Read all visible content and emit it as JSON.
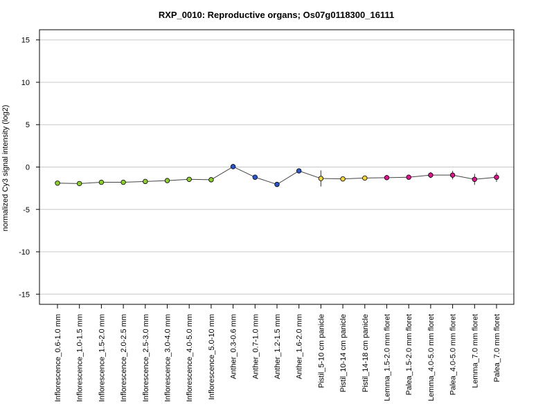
{
  "chart_data": {
    "type": "line",
    "title": "RXP_0010: Reproductive organs; Os07g0118300_16111",
    "xlabel": "",
    "ylabel": "normalized Cy3 signal intensity (log2)",
    "ylim": [
      -16.2,
      16.2
    ],
    "yticks": [
      15,
      10,
      5,
      0,
      -5,
      -10,
      -15
    ],
    "grid": true,
    "line_color": "#444444",
    "categories": [
      "Inflorescence_0.6-1.0 mm",
      "Inflorescence_1.0-1.5 mm",
      "Inflorescence_1.5-2.0 mm",
      "Inflorescence_2.0-2.5 mm",
      "Inflorescence_2.5-3.0 mm",
      "Inflorescence_3.0-4.0 mm",
      "Inflorescence_4.0-5.0 mm",
      "Inflorescence_5.0-10 mm",
      "Anther_0.3-0.6 mm",
      "Anther_0.7-1.0 mm",
      "Anther_1.2-1.5 mm",
      "Anther_1.6-2.0 mm",
      "Pistil_5-10 cm panicle",
      "Pistil_10-14 cm panicle",
      "Pistil_14-18 cm panicle",
      "Lemma_1.5-2.0 mm floret",
      "Palea_1.5-2.0 mm floret",
      "Lemma_4.0-5.0 mm floret",
      "Palea_4.0-5.0 mm floret",
      "Lemma_7.0 mm floret",
      "Palea_7.0 mm floret"
    ],
    "values": [
      -1.9,
      -1.95,
      -1.8,
      -1.8,
      -1.7,
      -1.6,
      -1.45,
      -1.5,
      0.05,
      -1.2,
      -2.05,
      -0.45,
      -1.35,
      -1.4,
      -1.3,
      -1.25,
      -1.2,
      -0.95,
      -0.95,
      -1.45,
      -1.2
    ],
    "errors": [
      0.12,
      0.1,
      0.1,
      0.1,
      0.1,
      0.12,
      0.12,
      0.1,
      0.12,
      0.15,
      0.12,
      0.25,
      0.95,
      0.12,
      0.12,
      0.3,
      0.2,
      0.35,
      0.5,
      0.65,
      0.55
    ],
    "point_colors": [
      "#8fcc2f",
      "#8fcc2f",
      "#8fcc2f",
      "#8fcc2f",
      "#8fcc2f",
      "#8fcc2f",
      "#8fcc2f",
      "#8fcc2f",
      "#2a56c8",
      "#2a56c8",
      "#2a56c8",
      "#2a56c8",
      "#f0d23c",
      "#f0d23c",
      "#f0d23c",
      "#d8178a",
      "#d8178a",
      "#d8178a",
      "#d8178a",
      "#d8178a",
      "#d8178a"
    ]
  }
}
